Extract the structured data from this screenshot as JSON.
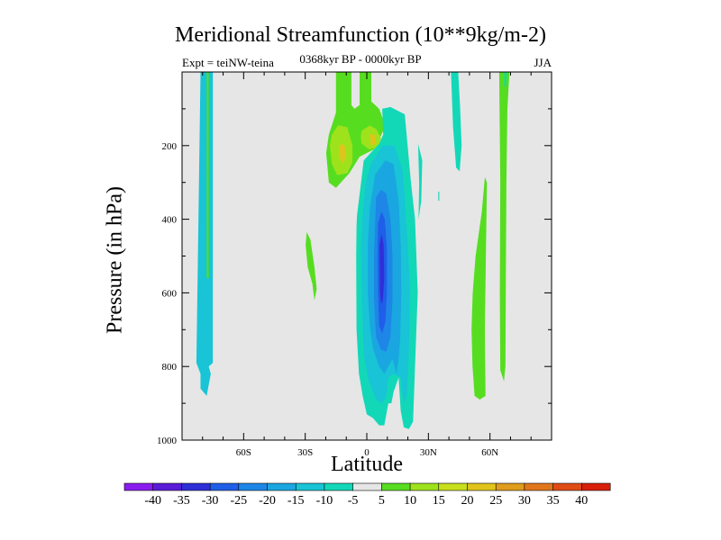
{
  "chart_data": {
    "type": "heatmap",
    "title": "Meridional Streamfunction (10**9kg/m-2)",
    "subtitle_left": "Expt = teiNW-teina",
    "subtitle_center": "0368kyr BP - 0000kyr BP",
    "subtitle_right": "JJA",
    "xlabel": "Latitude",
    "ylabel": "Pressure (in hPa)",
    "xlim": [
      -90,
      90
    ],
    "ylim": [
      0,
      1000
    ],
    "x_ticks": [
      {
        "value": -60,
        "label": "60S"
      },
      {
        "value": -30,
        "label": "30S"
      },
      {
        "value": 0,
        "label": "0"
      },
      {
        "value": 30,
        "label": "30N"
      },
      {
        "value": 60,
        "label": "60N"
      }
    ],
    "y_ticks": [
      {
        "value": 200,
        "label": "200"
      },
      {
        "value": 400,
        "label": "400"
      },
      {
        "value": 600,
        "label": "600"
      },
      {
        "value": 800,
        "label": "800"
      },
      {
        "value": 1000,
        "label": "1000"
      }
    ],
    "colorbar": {
      "labels": [
        "-40",
        "-35",
        "-30",
        "-25",
        "-20",
        "-15",
        "-10",
        "-5",
        "5",
        "10",
        "15",
        "20",
        "25",
        "30",
        "35",
        "40"
      ],
      "colors": [
        "#8a1cf0",
        "#5a1cd6",
        "#2f2fd8",
        "#1f5ee8",
        "#1e86e6",
        "#1aa6e0",
        "#18c4d6",
        "#12d8b8",
        "#e6e6e6",
        "#56dd20",
        "#9ee21c",
        "#c8df1c",
        "#e0c41c",
        "#e09c1c",
        "#e0761c",
        "#df4c16",
        "#d81f0a"
      ]
    },
    "zero_band_color": "#e6e6e6",
    "contour_regions": [
      {
        "name": "cyan-column-west",
        "level": -10,
        "color": "#18c4d6",
        "points": [
          [
            -81,
            0
          ],
          [
            -75,
            0
          ],
          [
            -75,
            790
          ],
          [
            -77,
            800
          ],
          [
            -76,
            820
          ],
          [
            -78,
            880
          ],
          [
            -81,
            860
          ],
          [
            -81,
            820
          ],
          [
            -83,
            790
          ],
          [
            -82,
            400
          ],
          [
            -81,
            0
          ]
        ]
      },
      {
        "name": "green-column-west",
        "level": 5,
        "color": "#56dd20",
        "points": [
          [
            -78,
            0
          ],
          [
            -77,
            0
          ],
          [
            -77,
            560
          ],
          [
            -78,
            560
          ],
          [
            -78,
            0
          ]
        ]
      },
      {
        "name": "green-blob-30s",
        "level": 5,
        "color": "#56dd20",
        "points": [
          [
            -29.3,
            435
          ],
          [
            -27.5,
            455
          ],
          [
            -25.5,
            530
          ],
          [
            -24.4,
            590
          ],
          [
            -25.5,
            620
          ],
          [
            -26.5,
            575
          ],
          [
            -28.8,
            530
          ],
          [
            -29.8,
            470
          ],
          [
            -29.3,
            435
          ]
        ]
      },
      {
        "name": "green-column-eq",
        "level": 5,
        "color": "#56dd20",
        "points": [
          [
            -15,
            0
          ],
          [
            -7.5,
            0
          ],
          [
            -7.5,
            90
          ],
          [
            -6,
            100
          ],
          [
            -3.5,
            90
          ],
          [
            -3.5,
            0
          ],
          [
            2.2,
            0
          ],
          [
            2.2,
            80
          ],
          [
            6,
            100
          ],
          [
            8,
            130
          ],
          [
            8,
            160
          ],
          [
            5,
            195
          ],
          [
            3.5,
            210
          ],
          [
            -3.5,
            230
          ],
          [
            -8.5,
            275
          ],
          [
            -15,
            315
          ],
          [
            -18.5,
            300
          ],
          [
            -19.8,
            220
          ],
          [
            -18.5,
            170
          ],
          [
            -15,
            110
          ],
          [
            -15,
            0
          ]
        ]
      },
      {
        "name": "yellow-blob-a",
        "level": 10,
        "color": "#9ee21c",
        "points": [
          [
            -17,
            170
          ],
          [
            -14,
            145
          ],
          [
            -9.5,
            150
          ],
          [
            -7,
            200
          ],
          [
            -7,
            245
          ],
          [
            -9.5,
            275
          ],
          [
            -14.5,
            280
          ],
          [
            -17,
            250
          ],
          [
            -18,
            200
          ],
          [
            -17,
            170
          ]
        ]
      },
      {
        "name": "yellow-blob-b",
        "level": 10,
        "color": "#9ee21c",
        "points": [
          [
            -2.5,
            160
          ],
          [
            1.5,
            145
          ],
          [
            4.5,
            155
          ],
          [
            7,
            180
          ],
          [
            5.5,
            205
          ],
          [
            1,
            210
          ],
          [
            -2.5,
            195
          ],
          [
            -3,
            175
          ],
          [
            -2.5,
            160
          ]
        ]
      },
      {
        "name": "orange-core-a",
        "level": 15,
        "color": "#e0c41c",
        "points": [
          [
            -13.5,
            200
          ],
          [
            -11,
            195
          ],
          [
            -10,
            225
          ],
          [
            -11.5,
            250
          ],
          [
            -13.5,
            230
          ],
          [
            -13.5,
            200
          ]
        ]
      },
      {
        "name": "orange-core-b",
        "level": 15,
        "color": "#e0c41c",
        "points": [
          [
            1.5,
            170
          ],
          [
            4,
            170
          ],
          [
            4.5,
            195
          ],
          [
            2,
            200
          ],
          [
            1.5,
            170
          ]
        ]
      },
      {
        "name": "negative-cell-outer",
        "level": -5,
        "color": "#12d8b8",
        "points": [
          [
            7.5,
            100
          ],
          [
            11.5,
            95
          ],
          [
            18.5,
            115
          ],
          [
            21.5,
            300
          ],
          [
            23.5,
            400
          ],
          [
            24.8,
            600
          ],
          [
            23.5,
            800
          ],
          [
            22.5,
            950
          ],
          [
            20.5,
            970
          ],
          [
            18,
            965
          ],
          [
            16.5,
            920
          ],
          [
            15.5,
            830
          ],
          [
            13,
            870
          ],
          [
            12,
            900
          ],
          [
            10.5,
            900
          ],
          [
            8.5,
            960
          ],
          [
            6,
            960
          ],
          [
            3,
            940
          ],
          [
            0,
            930
          ],
          [
            -2,
            880
          ],
          [
            -3.8,
            820
          ],
          [
            -5,
            700
          ],
          [
            -5.2,
            500
          ],
          [
            -5,
            420
          ],
          [
            -4.8,
            390
          ],
          [
            -2.8,
            300
          ],
          [
            -1.5,
            240
          ],
          [
            3.5,
            210
          ],
          [
            6,
            195
          ],
          [
            8,
            170
          ],
          [
            7.5,
            100
          ]
        ]
      },
      {
        "name": "negative-cell-inner",
        "level": -10,
        "color": "#18c4d6",
        "points": [
          [
            2,
            250
          ],
          [
            7.5,
            200
          ],
          [
            13.5,
            200
          ],
          [
            17.5,
            270
          ],
          [
            20,
            470
          ],
          [
            21,
            600
          ],
          [
            20.5,
            760
          ],
          [
            19.5,
            880
          ],
          [
            18,
            900
          ],
          [
            16.5,
            830
          ],
          [
            13,
            820
          ],
          [
            10.5,
            830
          ],
          [
            9.5,
            880
          ],
          [
            7.5,
            900
          ],
          [
            4.5,
            890
          ],
          [
            1,
            840
          ],
          [
            -1.5,
            770
          ],
          [
            -2.5,
            600
          ],
          [
            -2.8,
            480
          ],
          [
            -2.3,
            400
          ],
          [
            -0.5,
            300
          ],
          [
            2,
            250
          ]
        ]
      },
      {
        "name": "negative-cell-core-15",
        "level": -15,
        "color": "#1aa6e0",
        "points": [
          [
            4,
            280
          ],
          [
            9,
            240
          ],
          [
            13,
            250
          ],
          [
            15.5,
            350
          ],
          [
            16.5,
            470
          ],
          [
            16.8,
            600
          ],
          [
            16.3,
            720
          ],
          [
            15.5,
            780
          ],
          [
            14.5,
            820
          ],
          [
            12.5,
            780
          ],
          [
            10.5,
            800
          ],
          [
            8.5,
            820
          ],
          [
            6,
            800
          ],
          [
            3,
            750
          ],
          [
            1.5,
            690
          ],
          [
            0.5,
            600
          ],
          [
            0.5,
            470
          ],
          [
            1.5,
            370
          ],
          [
            4,
            280
          ]
        ]
      },
      {
        "name": "negative-cell-core-20",
        "level": -20,
        "color": "#1e86e6",
        "points": [
          [
            4.5,
            340
          ],
          [
            7,
            320
          ],
          [
            9.5,
            330
          ],
          [
            11.5,
            400
          ],
          [
            12.5,
            500
          ],
          [
            12.5,
            620
          ],
          [
            11.5,
            720
          ],
          [
            9.5,
            760
          ],
          [
            7,
            755
          ],
          [
            4.5,
            720
          ],
          [
            3.5,
            620
          ],
          [
            3.5,
            500
          ],
          [
            4.5,
            340
          ]
        ]
      },
      {
        "name": "negative-cell-core-25",
        "level": -25,
        "color": "#1f5ee8",
        "points": [
          [
            5.5,
            410
          ],
          [
            7.2,
            380
          ],
          [
            8.8,
            400
          ],
          [
            9.8,
            480
          ],
          [
            9.8,
            600
          ],
          [
            9,
            680
          ],
          [
            7.5,
            710
          ],
          [
            6,
            690
          ],
          [
            5.5,
            600
          ],
          [
            5.3,
            500
          ],
          [
            5.5,
            410
          ]
        ]
      },
      {
        "name": "negative-cell-core-30",
        "level": -30,
        "color": "#2f2fd8",
        "points": [
          [
            6.2,
            470
          ],
          [
            7.2,
            440
          ],
          [
            8.2,
            470
          ],
          [
            8.5,
            560
          ],
          [
            7.8,
            620
          ],
          [
            7,
            630
          ],
          [
            6.4,
            600
          ],
          [
            6.2,
            470
          ]
        ]
      },
      {
        "name": "cyan-sliver-northern",
        "level": -5,
        "color": "#12d8b8",
        "points": [
          [
            25,
            195
          ],
          [
            27,
            240
          ],
          [
            26.5,
            350
          ],
          [
            25.2,
            400
          ],
          [
            25.5,
            300
          ],
          [
            25,
            195
          ]
        ]
      },
      {
        "name": "cyan-tick-35n",
        "level": -5,
        "color": "#12d8b8",
        "points": [
          [
            34.8,
            325
          ],
          [
            35.3,
            325
          ],
          [
            35.3,
            350
          ],
          [
            34.8,
            350
          ],
          [
            34.8,
            325
          ]
        ]
      },
      {
        "name": "cyan-column-40n",
        "level": -5,
        "color": "#12d8b8",
        "points": [
          [
            41,
            0
          ],
          [
            44.5,
            0
          ],
          [
            45.5,
            100
          ],
          [
            46.2,
            200
          ],
          [
            45.2,
            270
          ],
          [
            43.5,
            260
          ],
          [
            42,
            150
          ],
          [
            41,
            0
          ]
        ]
      },
      {
        "name": "green-ridge-50n",
        "level": 5,
        "color": "#56dd20",
        "points": [
          [
            57.5,
            285
          ],
          [
            58.5,
            300
          ],
          [
            58,
            500
          ],
          [
            57.5,
            700
          ],
          [
            57.8,
            880
          ],
          [
            55,
            890
          ],
          [
            52.5,
            880
          ],
          [
            51.5,
            800
          ],
          [
            51,
            700
          ],
          [
            51.6,
            600
          ],
          [
            53,
            500
          ],
          [
            56,
            380
          ],
          [
            57.5,
            285
          ]
        ]
      },
      {
        "name": "green-column-65n",
        "level": 5,
        "color": "#56dd20",
        "points": [
          [
            64.5,
            0
          ],
          [
            69.5,
            0
          ],
          [
            68.5,
            100
          ],
          [
            68,
            300
          ],
          [
            67.8,
            500
          ],
          [
            67.5,
            800
          ],
          [
            66.8,
            840
          ],
          [
            65,
            810
          ],
          [
            64.8,
            600
          ],
          [
            65,
            300
          ],
          [
            64.5,
            0
          ]
        ]
      },
      {
        "name": "cyan-strip-65n",
        "level": -5,
        "color": "#12d8b8",
        "points": [
          [
            67,
            0
          ],
          [
            68.2,
            0
          ],
          [
            67.8,
            40
          ],
          [
            67,
            40
          ],
          [
            67,
            0
          ]
        ]
      }
    ]
  }
}
